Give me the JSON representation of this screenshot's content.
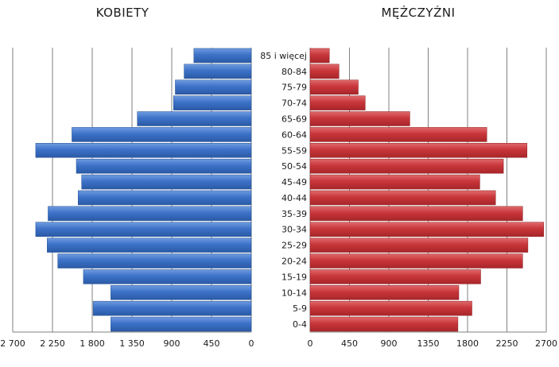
{
  "chart_data": [
    {
      "type": "bar",
      "orientation": "horizontal",
      "direction": "right-to-left",
      "title": "KOBIETY",
      "color": "#3a6fc4",
      "categories": [
        "85 i więcej",
        "80-84",
        "75-79",
        "70-74",
        "65-69",
        "60-64",
        "55-59",
        "50-54",
        "45-49",
        "40-44",
        "35-39",
        "30-34",
        "25-29",
        "20-24",
        "15-19",
        "10-14",
        "5-9",
        "0-4"
      ],
      "values": [
        650,
        760,
        860,
        880,
        1290,
        2030,
        2440,
        1980,
        1920,
        1960,
        2300,
        2440,
        2310,
        2190,
        1900,
        1590,
        1790,
        1590
      ],
      "xlim": [
        0,
        2700
      ],
      "xticks": [
        2700,
        2250,
        1800,
        1350,
        900,
        450,
        0
      ],
      "xtick_labels": [
        "2 700",
        "2 250",
        "1 800",
        "1 350",
        "900",
        "450",
        "0"
      ],
      "grid": true
    },
    {
      "type": "bar",
      "orientation": "horizontal",
      "direction": "left-to-right",
      "title": "MĘŻCZYŹNI",
      "color": "#c8363a",
      "categories": [
        "85 i więcej",
        "80-84",
        "75-79",
        "70-74",
        "65-69",
        "60-64",
        "55-59",
        "50-54",
        "45-49",
        "40-44",
        "35-39",
        "30-34",
        "25-29",
        "20-24",
        "15-19",
        "10-14",
        "5-9",
        "0-4"
      ],
      "values": [
        220,
        330,
        550,
        630,
        1140,
        2020,
        2480,
        2210,
        1940,
        2120,
        2430,
        2670,
        2490,
        2430,
        1950,
        1700,
        1850,
        1690
      ],
      "xlim": [
        0,
        2700
      ],
      "xticks": [
        0,
        450,
        900,
        1350,
        1800,
        2250,
        2700
      ],
      "xtick_labels": [
        "0",
        "450",
        "900",
        "1350",
        "1800",
        "2250",
        "2700"
      ],
      "grid": true
    }
  ]
}
